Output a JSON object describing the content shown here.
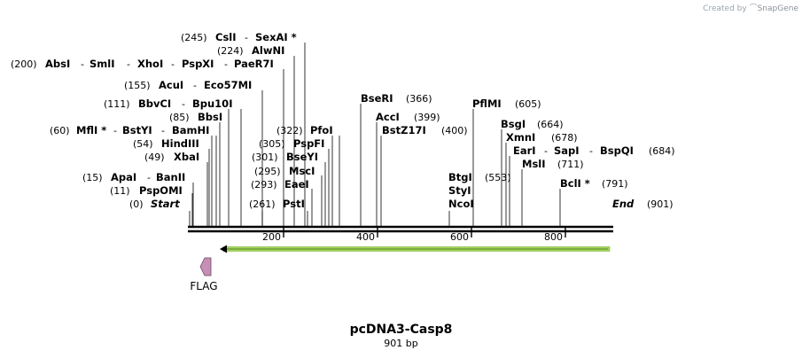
{
  "credit": {
    "prefix": "Created by",
    "brand": "SnapGene"
  },
  "map": {
    "name": "pcDNA3-Casp8",
    "length_label": "901 bp",
    "total_bp": 901,
    "start_label": "Start",
    "end_label": "End",
    "ticks": [
      {
        "bp": 200,
        "label": "200"
      },
      {
        "bp": 400,
        "label": "400"
      },
      {
        "bp": 600,
        "label": "600"
      },
      {
        "bp": 800,
        "label": "800"
      }
    ],
    "feature": {
      "label": "FLAG",
      "color": "#c78fb6"
    },
    "orf": {
      "color": "#a4d55b"
    },
    "sites": [
      {
        "pos": "(0)",
        "names": [
          "Start"
        ],
        "terminus": true
      },
      {
        "pos": "(11)",
        "names": [
          "PspOMI"
        ]
      },
      {
        "pos": "(15)",
        "names": [
          "ApaI",
          "BanII"
        ]
      },
      {
        "pos": "(49)",
        "names": [
          "XbaI"
        ]
      },
      {
        "pos": "(54)",
        "names": [
          "HindIII"
        ]
      },
      {
        "pos": "(60)",
        "names": [
          "MflI *",
          "BstYI",
          "BamHI"
        ]
      },
      {
        "pos": "(85)",
        "names": [
          "BbsI"
        ]
      },
      {
        "pos": "(111)",
        "names": [
          "BbvCI",
          "Bpu10I"
        ]
      },
      {
        "pos": "(155)",
        "names": [
          "AcuI",
          "Eco57MI"
        ]
      },
      {
        "pos": "(200)",
        "names": [
          "AbsI",
          "SmlI",
          "XhoI",
          "PspXI",
          "PaeR7I"
        ]
      },
      {
        "pos": "(224)",
        "names": [
          "AlwNI"
        ]
      },
      {
        "pos": "(245)",
        "names": [
          "CslI",
          "SexAI *"
        ]
      },
      {
        "pos": "(261)",
        "names": [
          "PstI"
        ]
      },
      {
        "pos": "(293)",
        "names": [
          "EaeI"
        ]
      },
      {
        "pos": "(295)",
        "names": [
          "MscI"
        ]
      },
      {
        "pos": "(301)",
        "names": [
          "BseYI"
        ]
      },
      {
        "pos": "(305)",
        "names": [
          "PspFI"
        ]
      },
      {
        "pos": "(322)",
        "names": [
          "PfoI"
        ]
      },
      {
        "pos": "(366)",
        "names": [
          "BseRI"
        ]
      },
      {
        "pos": "(399)",
        "names": [
          "AccI"
        ]
      },
      {
        "pos": "(400)",
        "names": [
          "BstZ17I"
        ]
      },
      {
        "pos": "(553)",
        "names": [
          "BtgI",
          "StyI",
          "NcoI"
        ]
      },
      {
        "pos": "(605)",
        "names": [
          "PflMI"
        ]
      },
      {
        "pos": "(664)",
        "names": [
          "BsgI"
        ]
      },
      {
        "pos": "(678)",
        "names": [
          "XmnI"
        ]
      },
      {
        "pos": "(684)",
        "names": [
          "EarI",
          "SapI",
          "BspQI"
        ]
      },
      {
        "pos": "(711)",
        "names": [
          "MslI"
        ]
      },
      {
        "pos": "(791)",
        "names": [
          "BclI *"
        ]
      },
      {
        "pos": "(901)",
        "names": [
          "End"
        ],
        "terminus": true
      }
    ]
  }
}
